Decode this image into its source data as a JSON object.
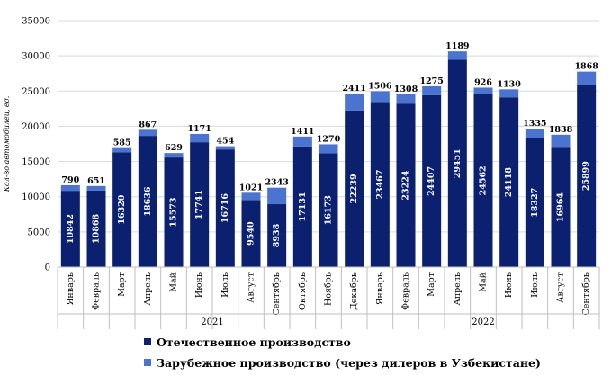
{
  "chart_data": {
    "type": "bar",
    "stacked": true,
    "ylabel": "Кол-во автомобилей, ед.",
    "ylim": [
      0,
      35000
    ],
    "yticks": [
      0,
      5000,
      10000,
      15000,
      20000,
      25000,
      30000,
      35000
    ],
    "categories": [
      "Январь",
      "Февраль",
      "Март",
      "Апрель",
      "Май",
      "Июнь",
      "Июль",
      "Август",
      "Сентябрь",
      "Октябрь",
      "Ноябрь",
      "Декабрь",
      "Январь",
      "Февраль",
      "Март",
      "Апрель",
      "Май",
      "Июнь",
      "Июль",
      "Август",
      "Сентябрь"
    ],
    "years": [
      {
        "label": "2021",
        "start": 0,
        "end": 11
      },
      {
        "label": "2022",
        "start": 12,
        "end": 20
      }
    ],
    "series": [
      {
        "name": "Отечественное производство",
        "color": "#0b2170",
        "values": [
          10842,
          10868,
          16320,
          18636,
          15573,
          17741,
          16716,
          9540,
          8938,
          17131,
          16173,
          22239,
          23467,
          23224,
          24407,
          29451,
          24562,
          24118,
          18327,
          16964,
          25899
        ]
      },
      {
        "name": "Зарубежное производство (через дилеров в Узбекистане)",
        "color": "#4a74cf",
        "values": [
          790,
          651,
          585,
          867,
          629,
          1171,
          454,
          1021,
          2343,
          1411,
          1270,
          2411,
          1506,
          1308,
          1275,
          1189,
          926,
          1130,
          1335,
          1838,
          1868
        ]
      }
    ],
    "grid": true,
    "legend_position": "bottom"
  }
}
